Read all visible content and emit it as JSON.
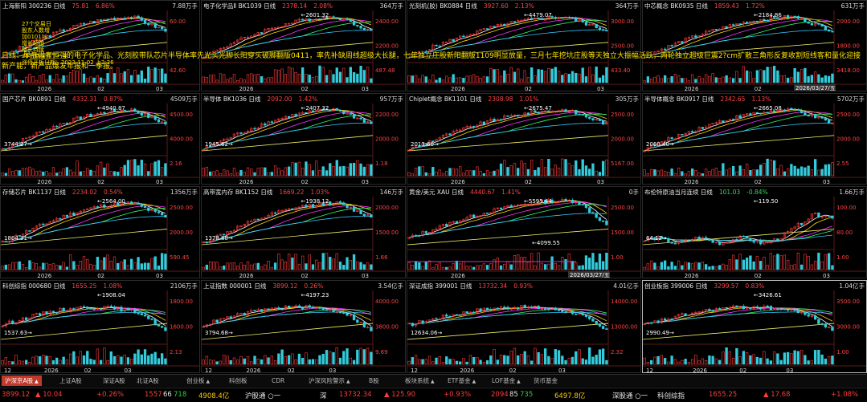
{
  "panels": [
    {
      "name": "上海新阳 300236 日线",
      "price": "75.81",
      "pct": "6.86%",
      "vol": "7.88万手",
      "dir": "up",
      "hi": "",
      "lo": "",
      "yl": [
        "60.00"
      ],
      "vl": [
        "42.60"
      ],
      "date": "",
      "xt": [
        "2026",
        "02",
        "03"
      ]
    },
    {
      "name": "电子化学品Ⅱ BK1039 日线",
      "price": "2378.14",
      "pct": "2.08%",
      "vol": "364万手",
      "dir": "up",
      "hi": "2601.32",
      "lo": "",
      "yl": [
        "2400.00",
        "2200.00"
      ],
      "vl": [
        "487.48"
      ],
      "date": "",
      "xt": [
        "2026",
        "02",
        "03"
      ]
    },
    {
      "name": "光刻机(胶) BK0884 日线",
      "price": "3927.60",
      "pct": "2.13%",
      "vol": "364万手",
      "dir": "up",
      "hi": "4479.07",
      "lo": "",
      "yl": [
        "3000.00",
        "2500.00"
      ],
      "vl": [
        "433.40"
      ],
      "date": "",
      "xt": [
        "2026",
        "02",
        "03"
      ]
    },
    {
      "name": "中芯概念 BK0935 日线",
      "price": "1859.43",
      "pct": "1.72%",
      "vol": "631万手",
      "dir": "up",
      "hi": "2184.86",
      "lo": "",
      "yl": [
        "2000.00",
        "1800.00"
      ],
      "vl": [
        "3418.00"
      ],
      "date": "2026/03/27/五",
      "xt": [
        "2026",
        "02",
        "03"
      ]
    },
    {
      "name": "国产芯片 BK0891 日线",
      "price": "4332.31",
      "pct": "0.87%",
      "vol": "4509万手",
      "dir": "up",
      "hi": "4940.87",
      "lo": "3744.27",
      "yl": [
        "4500.00",
        "4000.00"
      ],
      "vl": [
        "2.16"
      ],
      "date": "",
      "xt": [
        "2026",
        "02",
        "03"
      ]
    },
    {
      "name": "半导体 BK1036 日线",
      "price": "2092.00",
      "pct": "1.42%",
      "vol": "957万手",
      "dir": "up",
      "hi": "2407.32",
      "lo": "1945.62",
      "yl": [
        "2200.00",
        "2000.00"
      ],
      "vl": [
        "1.18"
      ],
      "date": "",
      "xt": [
        "2026",
        "02",
        "03"
      ]
    },
    {
      "name": "Chiplet概念 BK1101 日线",
      "price": "2308.98",
      "pct": "1.01%",
      "vol": "305万手",
      "dir": "up",
      "hi": "2675.47",
      "lo": "2013.60",
      "yl": [
        "2500.00",
        "2000.00"
      ],
      "vl": [
        "5167.00"
      ],
      "date": "",
      "xt": [
        "2026",
        "02",
        "03"
      ]
    },
    {
      "name": "半导体概念 BK0917 日线",
      "price": "2342.65",
      "pct": "1.13%",
      "vol": "5702万手",
      "dir": "up",
      "hi": "2665.08",
      "lo": "2060.40",
      "yl": [
        "2500.00",
        "2000.00"
      ],
      "vl": [
        "2.55"
      ],
      "date": "",
      "xt": [
        "2026",
        "02",
        "03"
      ]
    },
    {
      "name": "存储芯片 BK1137 日线",
      "price": "2234.02",
      "pct": "0.54%",
      "vol": "1356万手",
      "dir": "up",
      "hi": "2564.00",
      "lo": "1864.31",
      "yl": [
        "2500.00",
        "2000.00"
      ],
      "vl": [
        "590.45"
      ],
      "date": "",
      "xt": [
        "2026",
        "02",
        "03"
      ]
    },
    {
      "name": "高带宽内存 BK1152 日线",
      "price": "1669.22",
      "pct": "1.03%",
      "vol": "146万手",
      "dir": "up",
      "hi": "1938.12",
      "lo": "1378.88",
      "yl": [
        "2000.00",
        "1500.00"
      ],
      "vl": [
        "1.66"
      ],
      "date": "",
      "xt": [
        "2026",
        "02",
        "03"
      ]
    },
    {
      "name": "黄金/美元 XAU 日线",
      "price": "4440.67",
      "pct": "1.41%",
      "vol": "0手",
      "dir": "up",
      "hi": "5595.44",
      "lo": "4099.55",
      "yl": [
        "2500.00",
        "1500.00"
      ],
      "vl": [
        "1.00"
      ],
      "date": "2026/03/27/五",
      "xt": [
        "2026"
      ]
    },
    {
      "name": "布伦特原油当月连续 日线",
      "price": "101.03",
      "pct": "-0.84%",
      "vol": "1.66万手",
      "dir": "down",
      "hi": "119.50",
      "lo": "64.12",
      "yl": [
        "100.00",
        "80.00"
      ],
      "vl": [
        "1.00"
      ],
      "date": "",
      "xt": [
        "2026",
        "02",
        "03"
      ]
    },
    {
      "name": "科创综指 000680 日线",
      "price": "1655.25",
      "pct": "1.08%",
      "vol": "2106万手",
      "dir": "up",
      "hi": "1908.04",
      "lo": "1537.63",
      "yl": [
        "1800.00",
        "1600.00"
      ],
      "vl": [
        "2.13"
      ],
      "date": "",
      "xt": [
        "12",
        "2026",
        "02",
        "03"
      ]
    },
    {
      "name": "上证指数 000001 日线",
      "price": "3899.12",
      "pct": "0.26%",
      "vol": "3.54亿手",
      "dir": "up",
      "hi": "4197.23",
      "lo": "3794.68",
      "yl": [
        "4000.00",
        "3800.00"
      ],
      "vl": [
        "9.69"
      ],
      "date": "",
      "xt": [
        "12",
        "2026",
        "02",
        "03"
      ]
    },
    {
      "name": "深证成指 399001 日线",
      "price": "13732.34",
      "pct": "0.93%",
      "vol": "4.01亿手",
      "dir": "up",
      "hi": "",
      "lo": "12634.06",
      "yl": [
        "14000.00",
        "13000.00"
      ],
      "vl": [
        "2.32"
      ],
      "date": "",
      "xt": [
        "12",
        "2026",
        "02",
        "03"
      ]
    },
    {
      "name": "创业板指 399006 日线",
      "price": "3299.57",
      "pct": "0.83%",
      "vol": "1.04亿手",
      "dir": "up",
      "hi": "3426.61",
      "lo": "2990.49",
      "yl": [
        "3500.00",
        "3000.00"
      ],
      "vl": [
        "1.00"
      ],
      "date": "",
      "xt": [
        "12",
        "2026",
        "02",
        "03"
      ]
    }
  ],
  "news_label": "日线：",
  "news_text": "早盘强者恒强的电子化学品、光刻胶带队芯片半导体率先光头光脚长阳穿头破脚翻版0411，率先补缺周线超级大长腿，七年独立庄股新阳翻版1109明显放量，三月七年挖坑庄股等天独立大振幅活跃，两轮独立超级巨震2?cm扩散三角形反复收割短线客和量化迎接新产能，新产品爆发年报和一季报。",
  "overlay": [
    "27个交易日",
    "股东人数增",
    "加0101%",
    "增长超跑",
    "增长持续",
    "25日持续开工一半",
    "涨停开板日期：2023-11-02 上2:26"
  ],
  "tabs": [
    {
      "label": "沪深京A股",
      "arrow": "▲",
      "active": true
    },
    {
      "label": "上证A股",
      "arrow": ""
    },
    {
      "label": "深证A股",
      "arrow": ""
    },
    {
      "label": "北证A股",
      "arrow": ""
    },
    {
      "label": "创业板",
      "arrow": "▲"
    },
    {
      "label": "科创板",
      "arrow": ""
    },
    {
      "label": "CDR",
      "arrow": ""
    },
    {
      "label": "沪深风险警示",
      "arrow": "▲"
    },
    {
      "label": "B股",
      "arrow": ""
    },
    {
      "label": "板块系统",
      "arrow": "▲"
    },
    {
      "label": "ETF基金",
      "arrow": "▲"
    },
    {
      "label": "LOF基金",
      "arrow": "▲"
    },
    {
      "label": "货币基金",
      "arrow": ""
    }
  ],
  "status": {
    "sh_index": "3899.12",
    "sh_change": "▲ 10.04",
    "sh_pct": "+0.26%",
    "sh_up": "1557",
    "sh_flat": "66",
    "sh_down": "718",
    "sh_amount": "4908.4亿",
    "hgt_label": "沪股通 ○一",
    "sz_label": "深",
    "sz_index": "13732.34",
    "sz_change": "▲ 125.90",
    "sz_pct": "+0.93%",
    "sz_up": "2094",
    "sz_flat": "85",
    "sz_down": "735",
    "sz_amount": "6497.8亿",
    "sgt_label": "深股通 ○一",
    "kc_label": "科创综指",
    "kc_index": "1655.25",
    "kc_change": "▲ 17.68",
    "kc_pct": "+1.08%"
  },
  "colors": {
    "up": "#ff3b3b",
    "down": "#2ecc40",
    "ma5": "#ffffff",
    "ma10": "#ffd700",
    "ma20": "#ff33ff",
    "ma30": "#33ff66",
    "ma60": "#33ccff",
    "ma120": "#eeee66"
  }
}
